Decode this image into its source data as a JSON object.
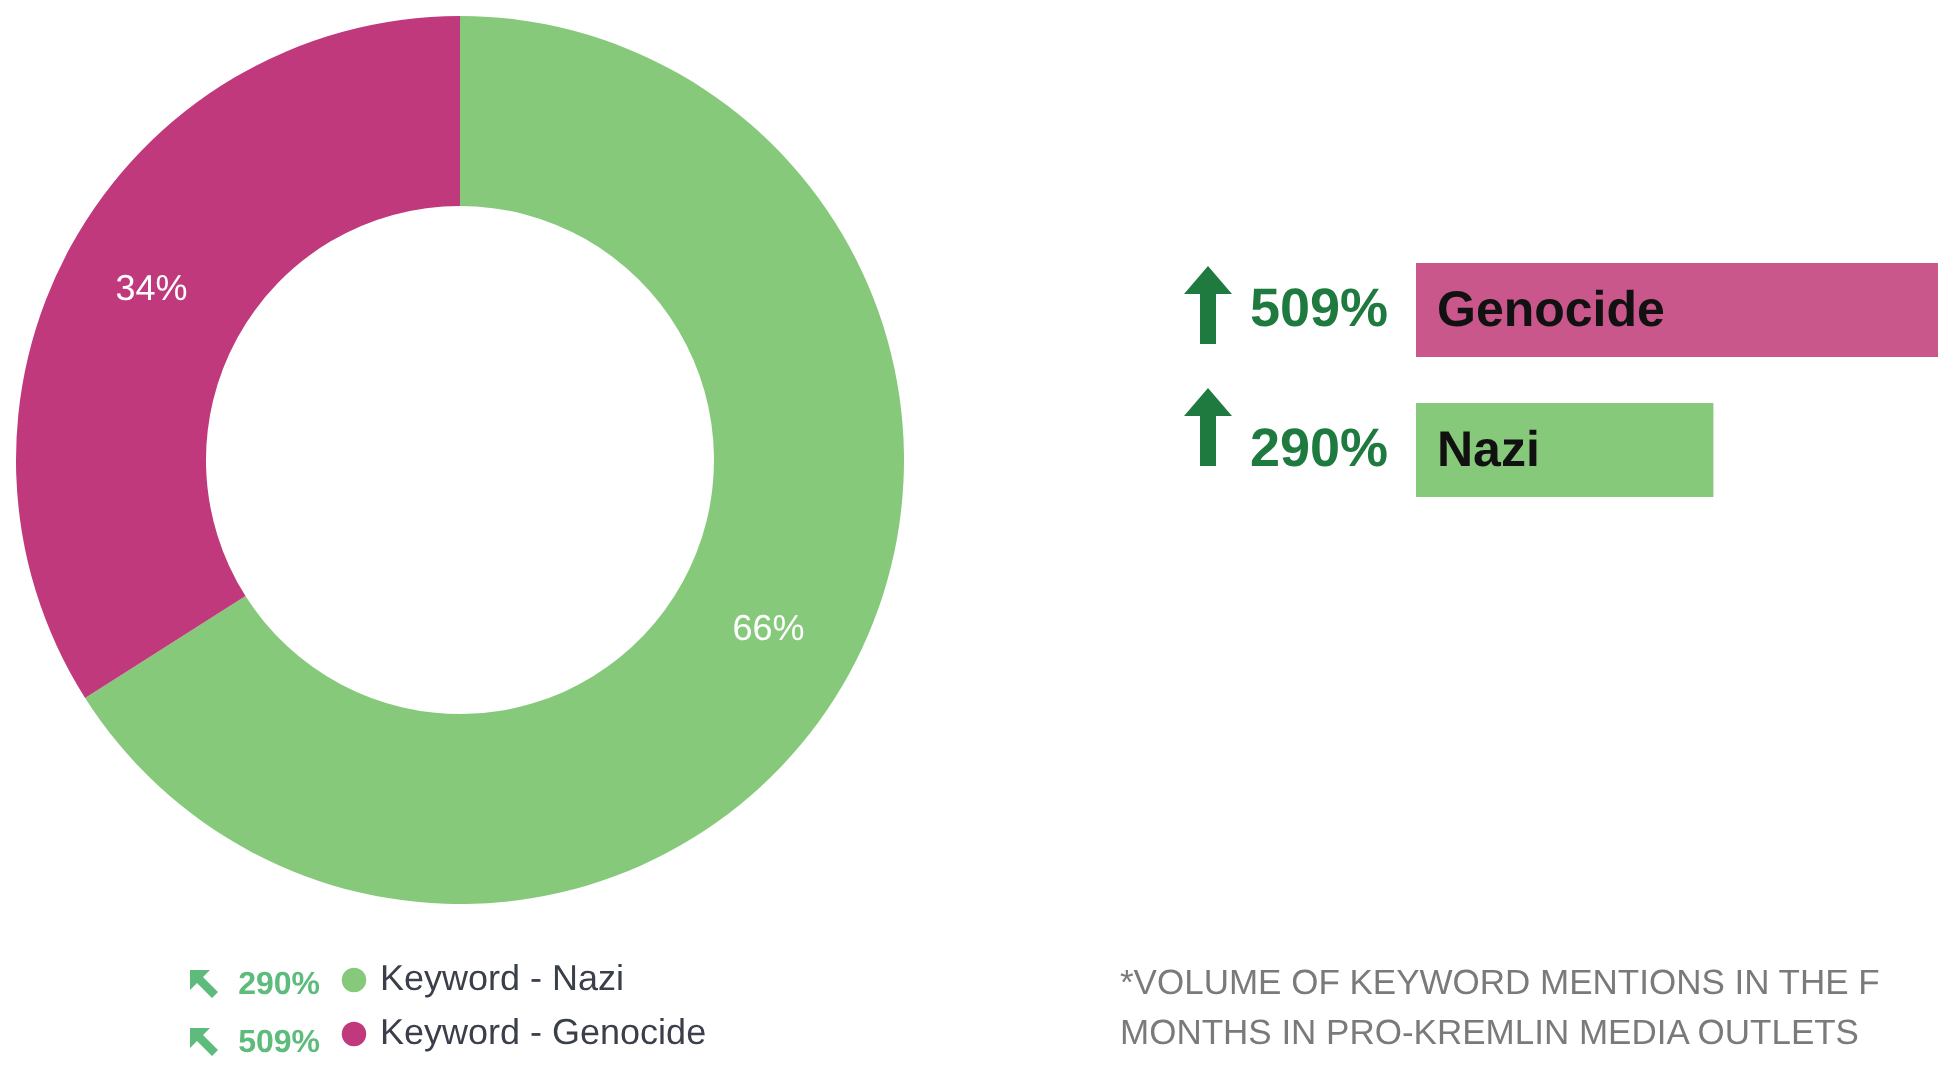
{
  "chart_data": [
    {
      "type": "donut",
      "categories": [
        "Keyword - Nazi",
        "Keyword - Genocide"
      ],
      "values": [
        66,
        34
      ],
      "colors": [
        "#86c97a",
        "#c0397d"
      ],
      "value_labels": [
        "66%",
        "34%"
      ],
      "legend": "bottom",
      "annotations": [
        "290%",
        "509%"
      ]
    },
    {
      "type": "bar",
      "orientation": "horizontal",
      "categories": [
        "Genocide",
        "Nazi"
      ],
      "values": [
        509,
        290
      ],
      "colors": [
        "#c9578c",
        "#86c97a"
      ],
      "value_labels": [
        "509%",
        "290%"
      ],
      "tick_labels": "y",
      "annotations": [
        "*VOLUME OF KEYWORD MENTIONS IN THE F",
        "MONTHS IN PRO-KREMLIN MEDIA OUTLETS"
      ]
    }
  ]
}
